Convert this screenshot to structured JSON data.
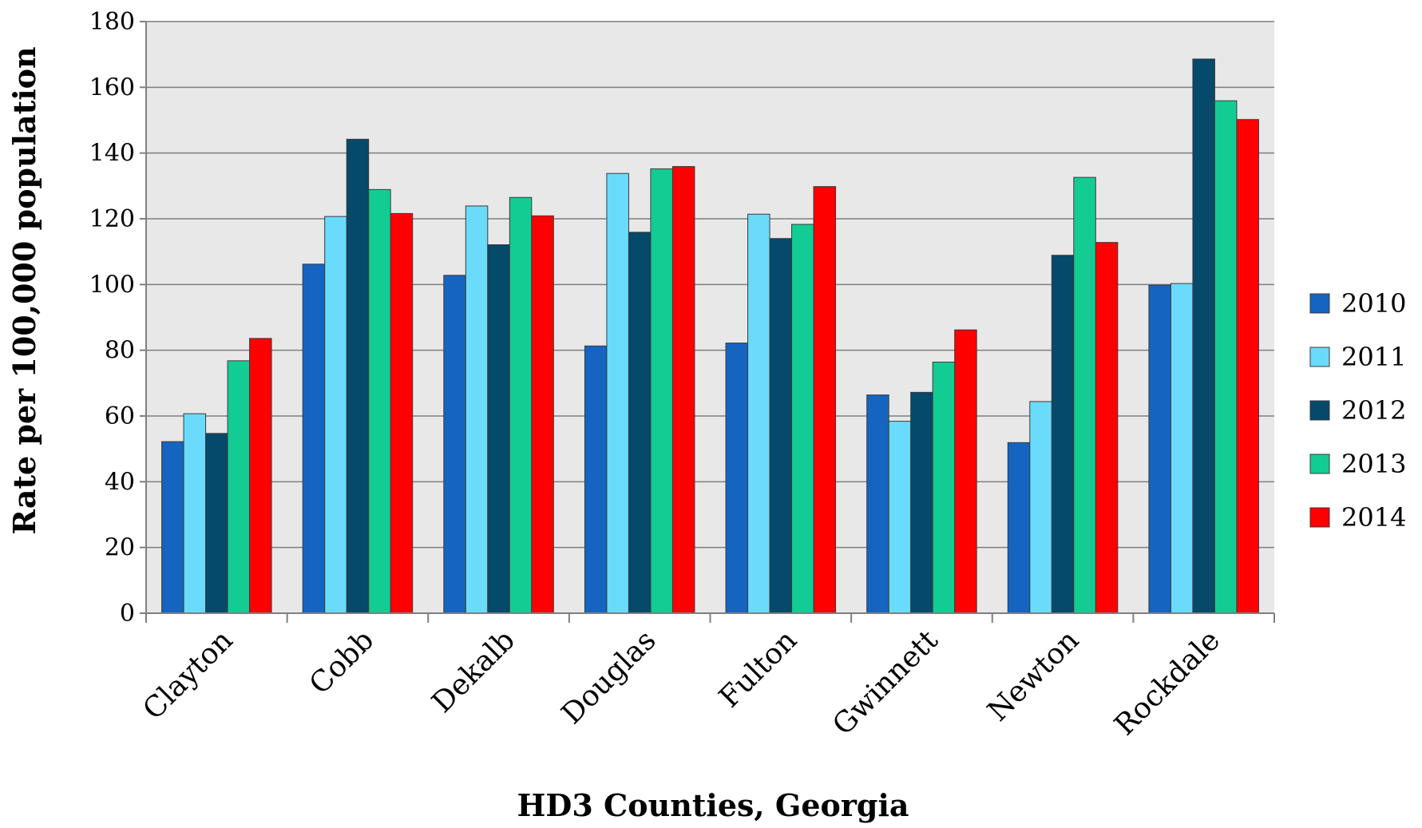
{
  "chart_data": {
    "type": "bar",
    "title": "",
    "xlabel": "HD3 Counties, Georgia",
    "ylabel": "Rate per 100,000 population",
    "ylim": [
      0,
      180
    ],
    "yticks": [
      0,
      20,
      40,
      60,
      80,
      100,
      120,
      140,
      160,
      180
    ],
    "grid": true,
    "legend_position": "right",
    "categories": [
      "Clayton",
      "Cobb",
      "Dekalb",
      "Douglas",
      "Fulton",
      "Gwinnett",
      "Newton",
      "Rockdale"
    ],
    "series": [
      {
        "name": "2010",
        "color": "#1565C0",
        "values": [
          52.2,
          106.2,
          102.8,
          81.3,
          82.2,
          66.4,
          51.9,
          99.8
        ]
      },
      {
        "name": "2011",
        "color": "#6ADBFB",
        "values": [
          60.7,
          120.7,
          123.9,
          133.8,
          121.4,
          58.4,
          64.4,
          100.3
        ]
      },
      {
        "name": "2012",
        "color": "#05496B",
        "values": [
          54.7,
          144.2,
          112.1,
          115.9,
          114.0,
          67.2,
          108.9,
          168.6
        ]
      },
      {
        "name": "2013",
        "color": "#13CC93",
        "values": [
          76.8,
          128.9,
          126.5,
          135.2,
          118.3,
          76.4,
          132.6,
          155.9
        ]
      },
      {
        "name": "2014",
        "color": "#FE0000",
        "values": [
          83.6,
          121.6,
          120.9,
          135.9,
          129.8,
          86.2,
          112.8,
          150.2
        ]
      }
    ]
  }
}
